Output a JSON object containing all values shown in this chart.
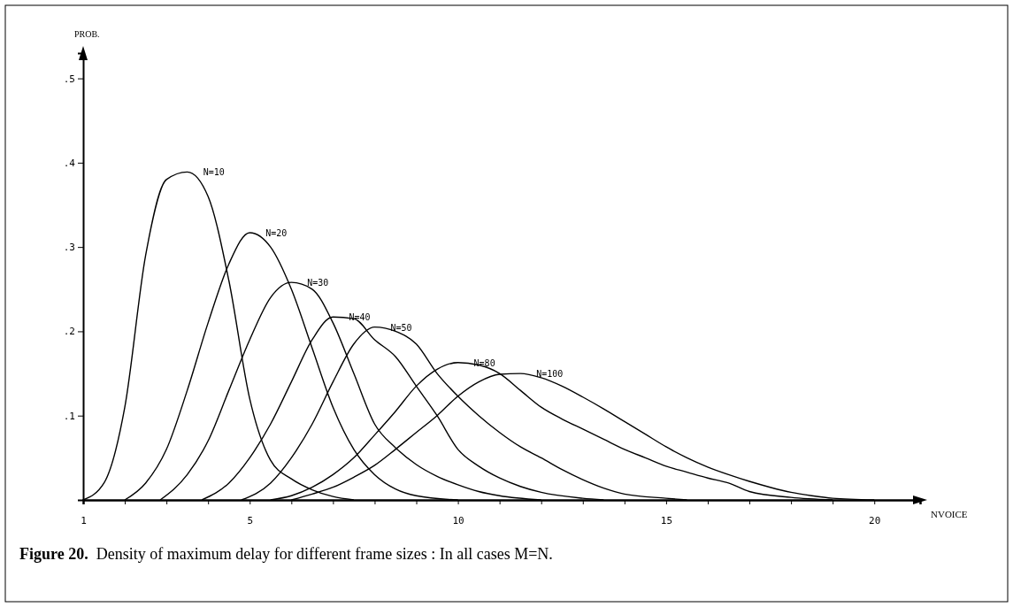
{
  "chart_data": {
    "type": "line",
    "xlabel": "NVOICE",
    "ylabel": "PROB.",
    "xlim": [
      1,
      21.1
    ],
    "ylim": [
      0,
      0.53
    ],
    "xticks": [
      1,
      {
        "value": 2,
        "label": null
      },
      {
        "value": 3,
        "label": null
      },
      {
        "value": 4,
        "label": null
      },
      5,
      {
        "value": 6,
        "label": null
      },
      {
        "value": 7,
        "label": null
      },
      {
        "value": 8,
        "label": null
      },
      {
        "value": 9,
        "label": null
      },
      10,
      {
        "value": 11,
        "label": null
      },
      {
        "value": 12,
        "label": null
      },
      {
        "value": 13,
        "label": null
      },
      {
        "value": 14,
        "label": null
      },
      15,
      {
        "value": 16,
        "label": null
      },
      {
        "value": 17,
        "label": null
      },
      {
        "value": 18,
        "label": null
      },
      {
        "value": 19,
        "label": null
      },
      20
    ],
    "yticks": [
      {
        "value": 0.1,
        "label": ".1"
      },
      {
        "value": 0.2,
        "label": ".2"
      },
      {
        "value": 0.3,
        "label": ".3"
      },
      {
        "value": 0.4,
        "label": ".4"
      },
      {
        "value": 0.5,
        "label": ".5"
      }
    ],
    "grid": false,
    "legend": false,
    "marker": "none",
    "line_style": "solid",
    "annotations": [
      "Figure 20.  Density of maximum delay for different frame sizes : In all cases M=N."
    ],
    "series": [
      {
        "name": "N=10",
        "color": "#000000",
        "x": [
          1,
          1.5,
          2,
          2.5,
          3,
          3.5,
          4,
          4.5,
          5,
          5.5,
          6,
          6.5,
          7,
          7.5
        ],
        "values": [
          0,
          0.02,
          0.11,
          0.29,
          0.38,
          0.389,
          0.36,
          0.26,
          0.12,
          0.047,
          0.025,
          0.012,
          0.004,
          0
        ]
      },
      {
        "name": "N=20",
        "color": "#000000",
        "x": [
          2,
          2.5,
          3,
          3.5,
          4,
          4.5,
          5,
          5.5,
          6,
          6.5,
          7,
          7.5,
          8,
          8.5,
          9,
          10
        ],
        "values": [
          0,
          0.02,
          0.06,
          0.13,
          0.21,
          0.28,
          0.317,
          0.3,
          0.25,
          0.18,
          0.11,
          0.06,
          0.03,
          0.013,
          0.005,
          0
        ]
      },
      {
        "name": "N=30",
        "color": "#000000",
        "x": [
          2.85,
          3.5,
          4,
          4.5,
          5,
          5.5,
          6,
          6.5,
          7,
          7.5,
          8,
          8.5,
          9,
          9.5,
          10,
          10.5,
          11,
          12
        ],
        "values": [
          0,
          0.03,
          0.07,
          0.13,
          0.19,
          0.24,
          0.258,
          0.25,
          0.21,
          0.15,
          0.09,
          0.062,
          0.042,
          0.028,
          0.018,
          0.01,
          0.005,
          0
        ]
      },
      {
        "name": "N=40",
        "color": "#000000",
        "x": [
          3.85,
          4.5,
          5,
          5.5,
          6,
          6.5,
          7,
          7.5,
          8,
          8.5,
          9,
          9.5,
          10,
          10.5,
          11,
          11.5,
          12,
          13,
          13.5
        ],
        "values": [
          0,
          0.02,
          0.05,
          0.09,
          0.14,
          0.19,
          0.217,
          0.215,
          0.19,
          0.17,
          0.135,
          0.1,
          0.06,
          0.04,
          0.026,
          0.016,
          0.009,
          0.002,
          0
        ]
      },
      {
        "name": "N=50",
        "color": "#000000",
        "x": [
          4.8,
          5.5,
          6,
          6.5,
          7,
          7.5,
          8,
          8.5,
          9,
          9.5,
          10,
          10.5,
          11,
          11.5,
          12,
          12.5,
          13,
          13.5,
          14,
          15,
          15.5
        ],
        "values": [
          0,
          0.02,
          0.05,
          0.09,
          0.14,
          0.185,
          0.205,
          0.2,
          0.185,
          0.15,
          0.123,
          0.1,
          0.08,
          0.063,
          0.05,
          0.036,
          0.024,
          0.014,
          0.007,
          0.002,
          0
        ]
      },
      {
        "name": "N=80",
        "color": "#000000",
        "x": [
          5.5,
          6,
          6.5,
          7,
          7.5,
          8,
          8.5,
          9,
          9.5,
          10,
          10.5,
          11,
          11.5,
          12,
          12.5,
          13,
          13.5,
          14,
          14.5,
          15,
          15.5,
          16,
          16.5,
          17,
          18,
          19
        ],
        "values": [
          0,
          0.005,
          0.015,
          0.03,
          0.05,
          0.077,
          0.105,
          0.135,
          0.155,
          0.163,
          0.16,
          0.15,
          0.13,
          0.11,
          0.096,
          0.084,
          0.072,
          0.06,
          0.05,
          0.04,
          0.033,
          0.026,
          0.02,
          0.01,
          0.003,
          0
        ]
      },
      {
        "name": "N=100",
        "color": "#000000",
        "x": [
          6,
          6.5,
          7,
          7.5,
          8,
          8.5,
          9,
          9.5,
          10,
          10.5,
          11,
          11.5,
          12,
          12.5,
          13,
          13.5,
          14,
          14.5,
          15,
          15.5,
          16,
          16.5,
          17,
          17.5,
          18,
          18.5,
          19,
          20
        ],
        "values": [
          0,
          0.007,
          0.015,
          0.027,
          0.041,
          0.06,
          0.08,
          0.1,
          0.123,
          0.14,
          0.149,
          0.15,
          0.145,
          0.135,
          0.122,
          0.108,
          0.093,
          0.078,
          0.063,
          0.05,
          0.039,
          0.03,
          0.022,
          0.015,
          0.009,
          0.005,
          0.002,
          0
        ]
      }
    ]
  }
}
